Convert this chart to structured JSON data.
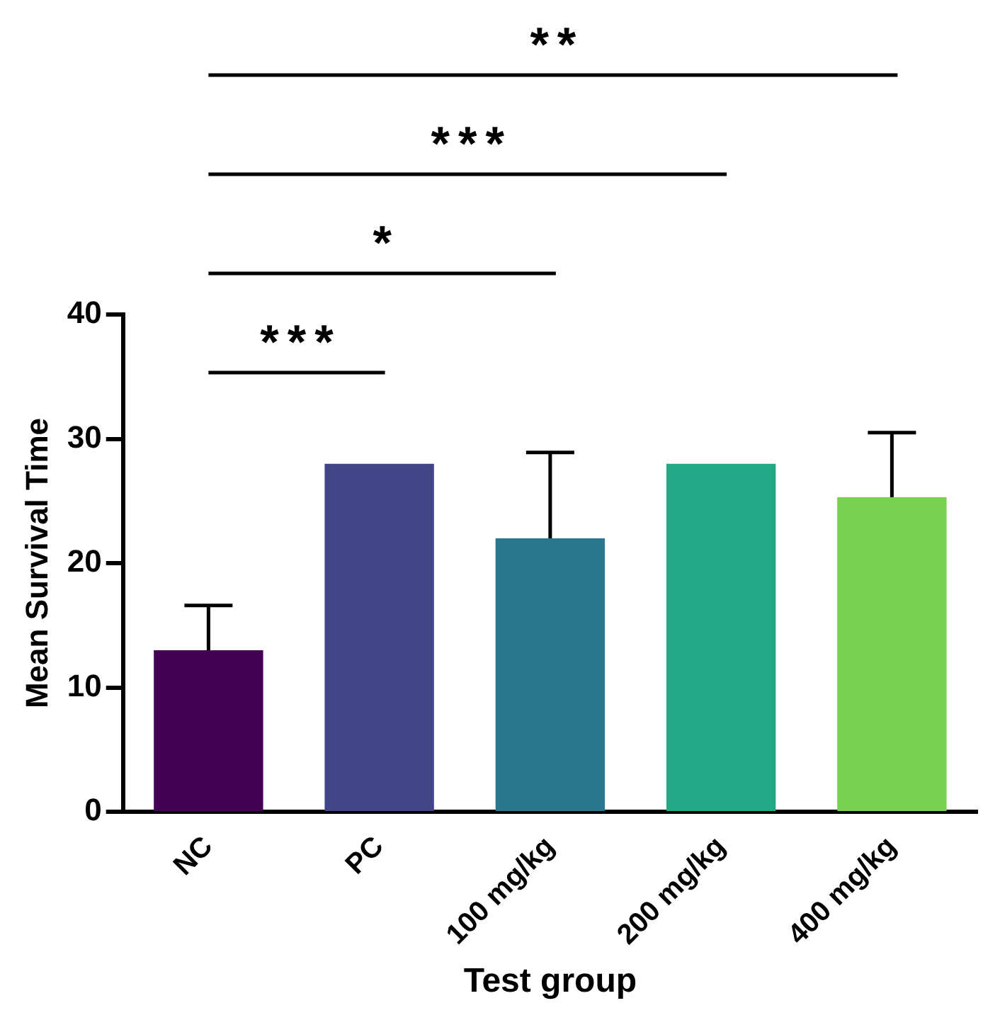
{
  "chart_data": {
    "type": "bar",
    "xlabel": "Test group",
    "ylabel": "Mean Survival Time",
    "categories": [
      "NC",
      "PC",
      "100 mg/kg",
      "200 mg/kg",
      "400 mg/kg"
    ],
    "values": [
      13,
      28,
      22,
      28,
      25.3
    ],
    "colors": [
      "#440154",
      "#414487",
      "#2a788e",
      "#22a884",
      "#7ad151"
    ],
    "errors": [
      [
        13,
        16.6
      ],
      null,
      [
        22,
        28.9
      ],
      null,
      [
        25.3,
        30.5
      ]
    ],
    "ylim": [
      0,
      40
    ],
    "yticks": [
      0,
      10,
      20,
      30,
      40
    ],
    "grid": false,
    "legend": false,
    "annotations": [
      "***",
      "*",
      "***",
      "**"
    ]
  }
}
